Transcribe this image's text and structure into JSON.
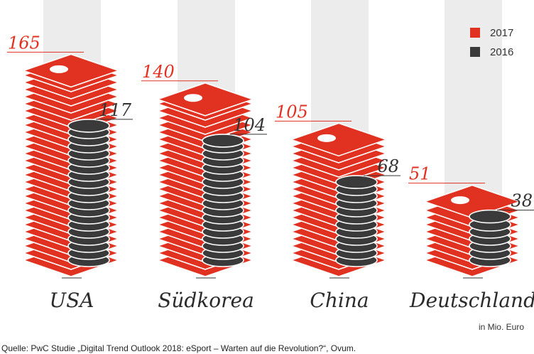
{
  "chart_data": {
    "type": "bar",
    "categories": [
      "USA",
      "Südkorea",
      "China",
      "Deutschland"
    ],
    "series": [
      {
        "name": "2017",
        "values": [
          165,
          140,
          105,
          51
        ],
        "color": "#e03121"
      },
      {
        "name": "2016",
        "values": [
          117,
          104,
          68,
          38
        ],
        "color": "#3a3a3a"
      }
    ],
    "unit_label": "in Mio. Euro",
    "legend_position": "top-right"
  },
  "source": "Quelle: PwC Studie „Digital Trend Outlook 2018: eSport – Warten auf die Revolution?“, Ovum.",
  "colors": {
    "background_band": "#ececec",
    "label_2017": "#e03121",
    "label_2016": "#333333"
  }
}
